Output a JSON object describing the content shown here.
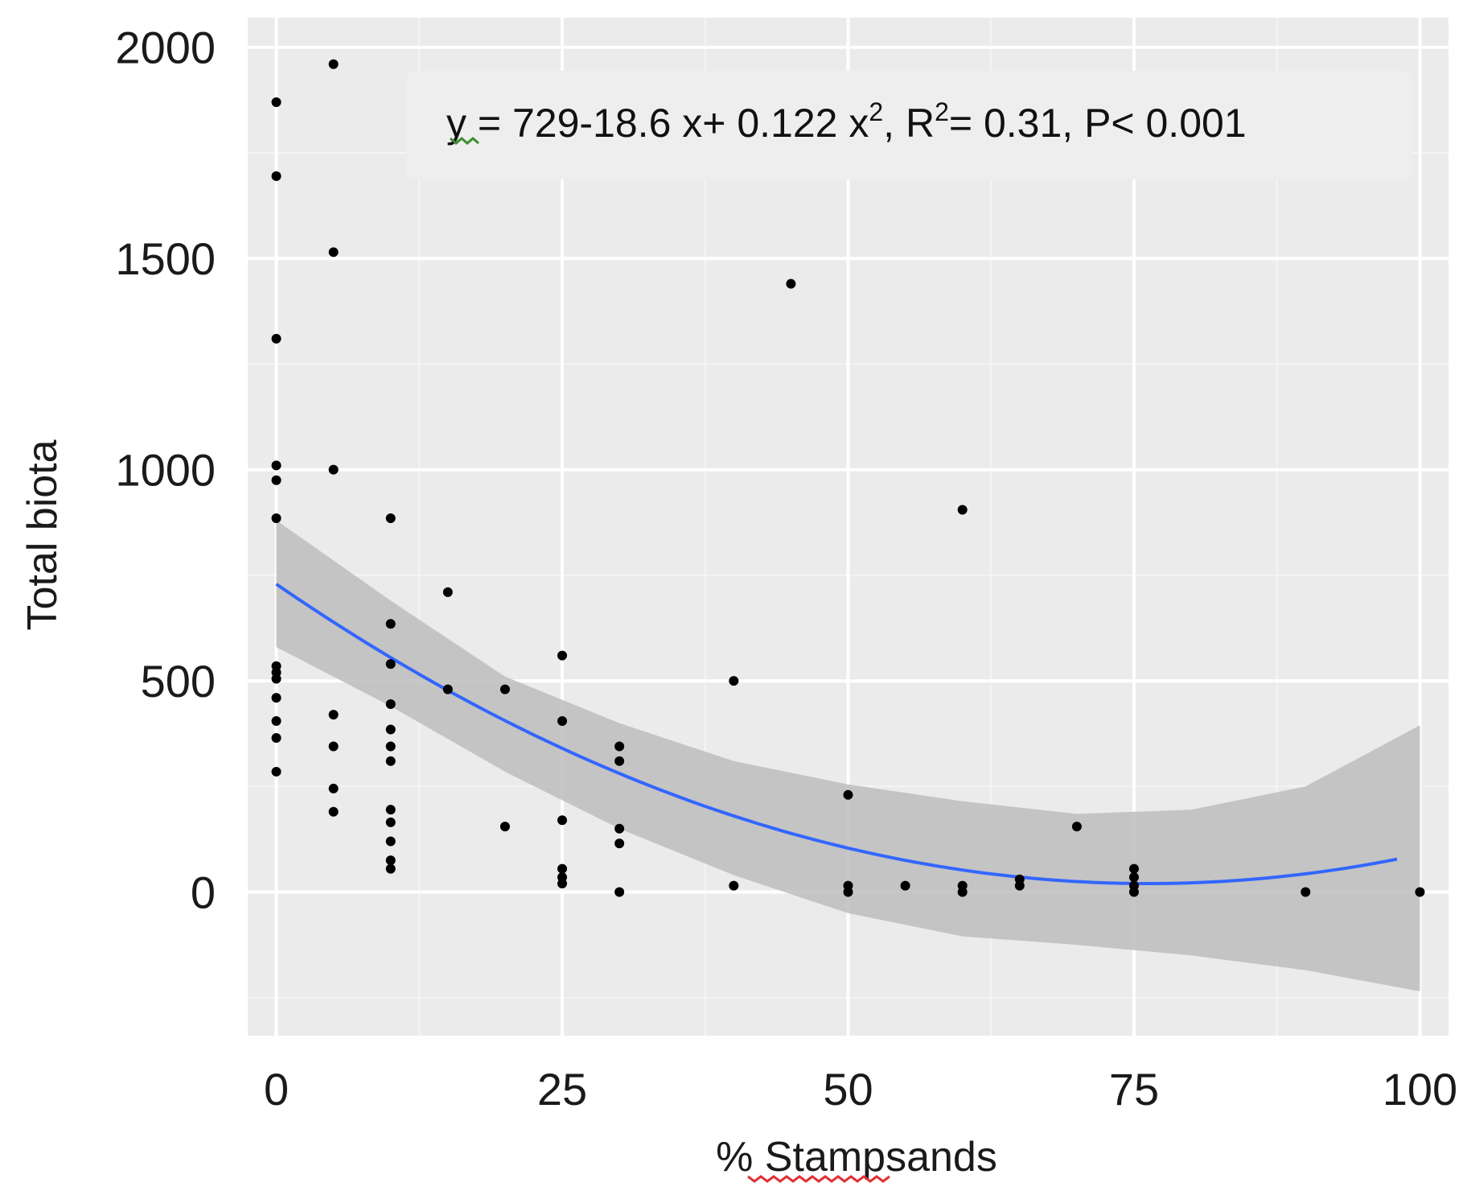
{
  "colors": {
    "panel_background": "#ebebeb",
    "major_grid": "#ffffff",
    "minor_grid": "#f4f4f4",
    "points": "#000000",
    "fit_line": "#3366ff",
    "confidence_band": "#bdbdbd",
    "annotation_box": "#eeeeee",
    "squiggle_green": "#3a8c2e",
    "squiggle_red": "#e03030"
  },
  "chart_data": {
    "type": "scatter",
    "title": "",
    "xlabel": "% Stampsands",
    "ylabel": "Total biota",
    "xlim": [
      -2.5,
      102.5
    ],
    "ylim": [
      -340,
      2070
    ],
    "x_ticks": [
      0,
      25,
      50,
      75,
      100
    ],
    "x_tick_labels": [
      "0",
      "25",
      "50",
      "75",
      "100"
    ],
    "y_ticks": [
      0,
      500,
      1000,
      1500,
      2000
    ],
    "y_tick_labels": [
      "0",
      "500",
      "1000",
      "1500",
      "2000"
    ],
    "grid": true,
    "annotation": {
      "equation_prefix": "y",
      "equation_body": " = 729-18.6 x+ 0.122 x",
      "x_exponent": "2",
      "r_label": ", R",
      "r_exponent": "2",
      "r_value": "= 0.31, P< 0.001"
    },
    "points": [
      {
        "x": 0,
        "y": 1870
      },
      {
        "x": 0,
        "y": 1695
      },
      {
        "x": 0,
        "y": 1310
      },
      {
        "x": 0,
        "y": 1010
      },
      {
        "x": 0,
        "y": 975
      },
      {
        "x": 0,
        "y": 885
      },
      {
        "x": 0,
        "y": 535
      },
      {
        "x": 0,
        "y": 520
      },
      {
        "x": 0,
        "y": 505
      },
      {
        "x": 0,
        "y": 460
      },
      {
        "x": 0,
        "y": 405
      },
      {
        "x": 0,
        "y": 365
      },
      {
        "x": 0,
        "y": 285
      },
      {
        "x": 5,
        "y": 1960
      },
      {
        "x": 5,
        "y": 1515
      },
      {
        "x": 5,
        "y": 1000
      },
      {
        "x": 5,
        "y": 420
      },
      {
        "x": 5,
        "y": 345
      },
      {
        "x": 5,
        "y": 245
      },
      {
        "x": 5,
        "y": 190
      },
      {
        "x": 10,
        "y": 885
      },
      {
        "x": 10,
        "y": 635
      },
      {
        "x": 10,
        "y": 540
      },
      {
        "x": 10,
        "y": 445
      },
      {
        "x": 10,
        "y": 385
      },
      {
        "x": 10,
        "y": 345
      },
      {
        "x": 10,
        "y": 310
      },
      {
        "x": 10,
        "y": 195
      },
      {
        "x": 10,
        "y": 165
      },
      {
        "x": 10,
        "y": 120
      },
      {
        "x": 10,
        "y": 75
      },
      {
        "x": 10,
        "y": 55
      },
      {
        "x": 15,
        "y": 710
      },
      {
        "x": 15,
        "y": 480
      },
      {
        "x": 20,
        "y": 480
      },
      {
        "x": 20,
        "y": 155
      },
      {
        "x": 25,
        "y": 560
      },
      {
        "x": 25,
        "y": 405
      },
      {
        "x": 25,
        "y": 170
      },
      {
        "x": 25,
        "y": 55
      },
      {
        "x": 25,
        "y": 35
      },
      {
        "x": 25,
        "y": 20
      },
      {
        "x": 30,
        "y": 345
      },
      {
        "x": 30,
        "y": 310
      },
      {
        "x": 30,
        "y": 150
      },
      {
        "x": 30,
        "y": 115
      },
      {
        "x": 30,
        "y": 0
      },
      {
        "x": 40,
        "y": 500
      },
      {
        "x": 40,
        "y": 15
      },
      {
        "x": 45,
        "y": 1440
      },
      {
        "x": 50,
        "y": 230
      },
      {
        "x": 50,
        "y": 15
      },
      {
        "x": 50,
        "y": 0
      },
      {
        "x": 55,
        "y": 15
      },
      {
        "x": 60,
        "y": 905
      },
      {
        "x": 60,
        "y": 15
      },
      {
        "x": 60,
        "y": 0
      },
      {
        "x": 65,
        "y": 30
      },
      {
        "x": 65,
        "y": 15
      },
      {
        "x": 70,
        "y": 155
      },
      {
        "x": 75,
        "y": 55
      },
      {
        "x": 75,
        "y": 35
      },
      {
        "x": 75,
        "y": 15
      },
      {
        "x": 75,
        "y": 0
      },
      {
        "x": 90,
        "y": 0
      },
      {
        "x": 100,
        "y": 0
      }
    ],
    "fit": {
      "method": "quadratic",
      "coefficients": [
        729,
        -18.6,
        0.122
      ],
      "x_range": [
        0,
        98
      ]
    },
    "confidence_band": {
      "x": [
        0,
        10,
        20,
        30,
        40,
        50,
        60,
        70,
        80,
        90,
        100
      ],
      "upper": [
        880,
        690,
        510,
        400,
        310,
        255,
        215,
        185,
        195,
        250,
        395
      ],
      "lower": [
        580,
        440,
        285,
        150,
        40,
        -50,
        -105,
        -125,
        -150,
        -185,
        -235
      ]
    }
  }
}
